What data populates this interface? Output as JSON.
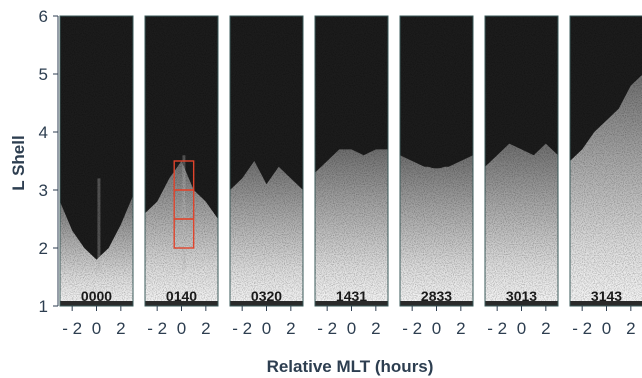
{
  "chart_data": {
    "type": "heatmap",
    "title": "",
    "ylabel": "L Shell",
    "xlabel": "Relative MLT (hours)",
    "ylim": [
      1,
      6
    ],
    "yticks": [
      "1",
      "2",
      "3",
      "4",
      "5",
      "6"
    ],
    "xlim": [
      -3,
      3
    ],
    "xticks": [
      "- 2",
      "0",
      "2"
    ],
    "xtick_values": [
      -2,
      0,
      2
    ],
    "colormap": "grayscale",
    "colors": {
      "background": "#1c1c1c",
      "bright": "#f7f7f7",
      "axis": "#2d3e50",
      "panel_frame": "#3a5a5a",
      "highlight_box": "#e0442c"
    },
    "panels": [
      {
        "label": "0000",
        "edge": [
          2.8,
          2.3,
          2.0,
          1.8,
          2.0,
          2.4,
          2.9
        ],
        "hole": null,
        "streak": 3.2
      },
      {
        "label": "0140",
        "edge": [
          2.6,
          2.8,
          3.2,
          3.5,
          3.0,
          2.8,
          2.5
        ],
        "hole": null,
        "streak": 3.6
      },
      {
        "label": "0320",
        "edge": [
          3.0,
          3.2,
          3.5,
          3.1,
          3.4,
          3.2,
          3.0
        ],
        "hole": null,
        "streak": null
      },
      {
        "label": "1431",
        "edge": [
          3.3,
          3.5,
          3.7,
          3.7,
          3.6,
          3.7,
          3.7
        ],
        "hole": null,
        "streak": null
      },
      {
        "label": "2833",
        "edge": [
          3.6,
          3.5,
          3.4,
          3.4,
          3.4,
          3.5,
          3.6
        ],
        "hole": {
          "bottom_l": 3.2,
          "half_width": 2.3,
          "top_l": 4.1
        },
        "streak": null
      },
      {
        "label": "3013",
        "edge": [
          3.4,
          3.6,
          3.8,
          3.7,
          3.6,
          3.8,
          3.6
        ],
        "hole": null,
        "streak": null
      },
      {
        "label": "3143",
        "edge": [
          3.5,
          3.7,
          4.0,
          4.2,
          4.4,
          4.8,
          5.0
        ],
        "hole": null,
        "streak": null
      }
    ],
    "highlight_boxes": {
      "panel": "0140",
      "mlt_range": [
        -0.6,
        1.0
      ],
      "cells": [
        [
          2.0,
          2.5
        ],
        [
          2.5,
          3.0
        ],
        [
          3.0,
          3.5
        ]
      ]
    }
  }
}
